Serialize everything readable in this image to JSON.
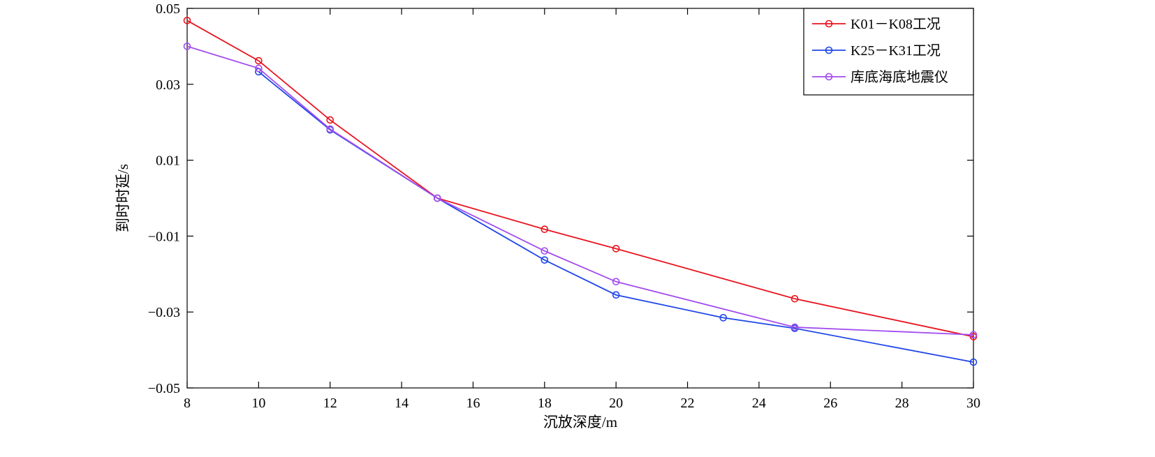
{
  "chart_data": {
    "type": "line",
    "title": "",
    "xlabel": "沉放深度/m",
    "ylabel": "到时时延/s",
    "xlim": [
      8,
      30
    ],
    "ylim": [
      -0.05,
      0.05
    ],
    "xticks": [
      8,
      10,
      12,
      14,
      16,
      18,
      20,
      22,
      24,
      26,
      28,
      30
    ],
    "xtick_labels": [
      "8",
      "10",
      "12",
      "14",
      "16",
      "18",
      "20",
      "22",
      "24",
      "26",
      "28",
      "30"
    ],
    "yticks": [
      0.05,
      0.03,
      0.01,
      -0.01,
      -0.03,
      -0.05
    ],
    "ytick_labels": [
      "0.05",
      "0.03",
      "0.01",
      "−0.01",
      "−0.03",
      "−0.05"
    ],
    "grid": false,
    "legend_position": "top-right",
    "series": [
      {
        "name": "K01－K08工况",
        "color": "#e8141e",
        "marker": "circle",
        "x": [
          8,
          10,
          12,
          15,
          18,
          20,
          25,
          30
        ],
        "y": [
          0.0468,
          0.0362,
          0.0206,
          0.0,
          -0.0082,
          -0.0133,
          -0.0265,
          -0.0365
        ]
      },
      {
        "name": "K25－K31工况",
        "color": "#1f46e8",
        "marker": "circle",
        "x": [
          10,
          12,
          15,
          18,
          20,
          23,
          25,
          30
        ],
        "y": [
          0.0333,
          0.018,
          0.0,
          -0.0163,
          -0.0255,
          -0.0315,
          -0.0343,
          -0.0432
        ]
      },
      {
        "name": "库底海底地震仪",
        "color": "#a24cef",
        "marker": "circle",
        "x": [
          8,
          10,
          12,
          15,
          18,
          20,
          25,
          30
        ],
        "y": [
          0.04,
          0.0342,
          0.0182,
          0.0,
          -0.0139,
          -0.022,
          -0.034,
          -0.036
        ]
      }
    ]
  }
}
